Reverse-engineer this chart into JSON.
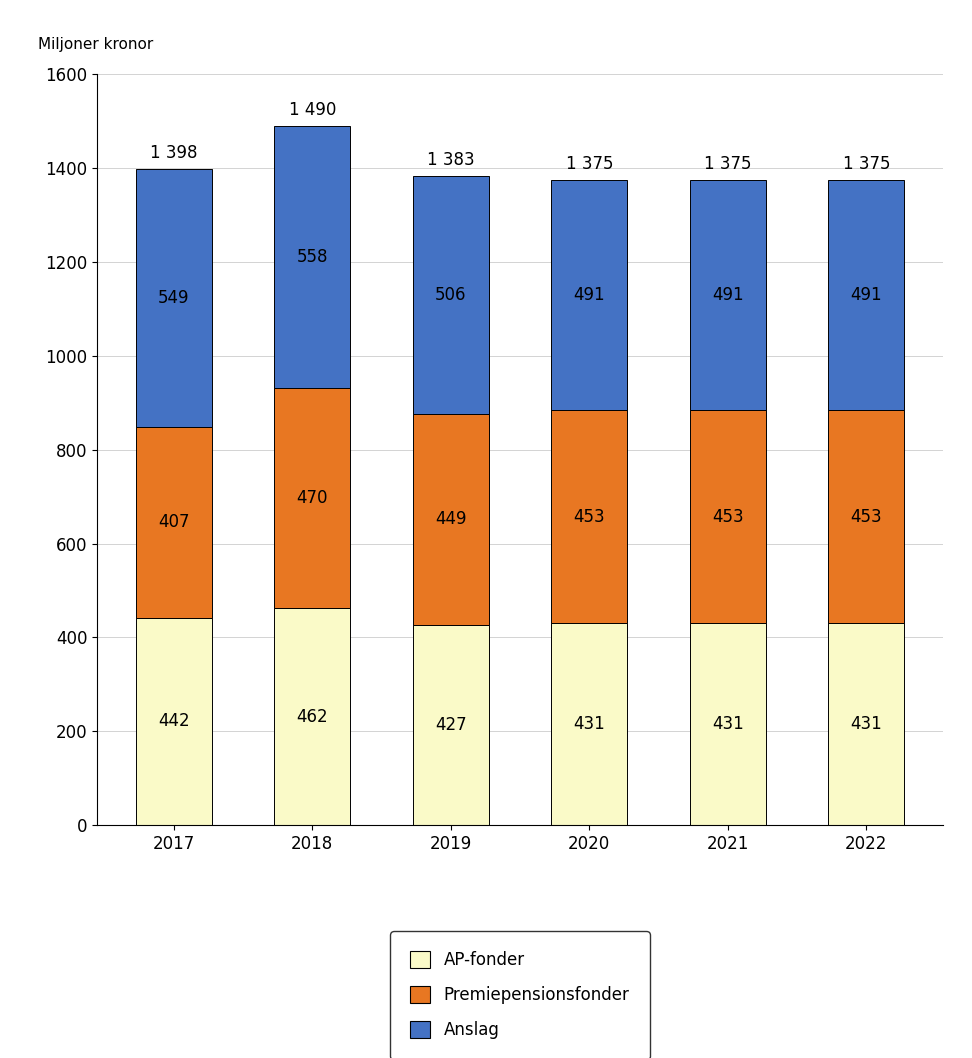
{
  "years": [
    "2017",
    "2018",
    "2019",
    "2020",
    "2021",
    "2022"
  ],
  "ap_fonder": [
    442,
    462,
    427,
    431,
    431,
    431
  ],
  "premiepensionsfonder": [
    407,
    470,
    449,
    453,
    453,
    453
  ],
  "anslag": [
    549,
    558,
    506,
    491,
    491,
    491
  ],
  "totals": [
    "1 398",
    "1 490",
    "1 383",
    "1 375",
    "1 375",
    "1 375"
  ],
  "color_ap": "#FAFAC8",
  "color_premie": "#E87722",
  "color_anslag": "#4472C4",
  "ylabel": "Miljoner kronor",
  "ylim": [
    0,
    1600
  ],
  "yticks": [
    0,
    200,
    400,
    600,
    800,
    1000,
    1200,
    1400,
    1600
  ],
  "legend_labels": [
    "AP-fonder",
    "Premiepensionsfonder",
    "Anslag"
  ],
  "bar_width": 0.55,
  "ylabel_fontsize": 11,
  "tick_fontsize": 12,
  "label_fontsize": 12,
  "annot_fontsize": 12
}
